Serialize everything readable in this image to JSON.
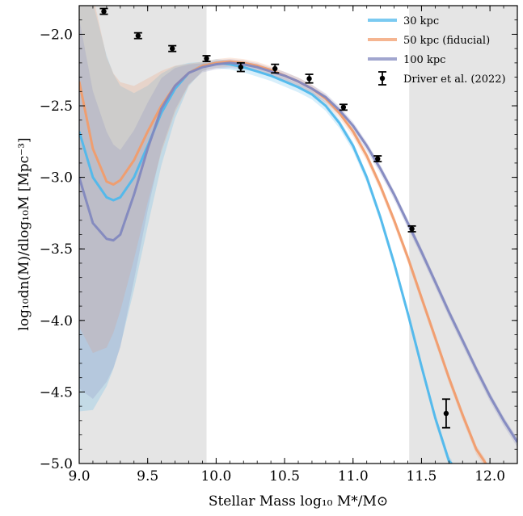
{
  "chart_data": {
    "type": "line",
    "xlabel": "Stellar Mass log₁₀ M*/M⊙",
    "ylabel": "log₁₀dn(M)/dlog₁₀M  [Mpc⁻³]",
    "xlim": [
      9.0,
      12.2
    ],
    "ylim": [
      -5.0,
      -1.8
    ],
    "x_ticks": [
      9.0,
      9.5,
      10.0,
      10.5,
      11.0,
      11.5,
      12.0
    ],
    "x_tick_labels": [
      "9.0",
      "9.5",
      "10.0",
      "10.5",
      "11.0",
      "11.5",
      "12.0"
    ],
    "y_ticks": [
      -5.0,
      -4.5,
      -4.0,
      -3.5,
      -3.0,
      -2.5,
      -2.0
    ],
    "y_tick_labels": [
      "−5.0",
      "−4.5",
      "−4.0",
      "−3.5",
      "−3.0",
      "−2.5",
      "−2.0"
    ],
    "grid": false,
    "legend_position": "top-right",
    "shaded_regions": [
      {
        "x_range": [
          9.0,
          9.93
        ],
        "color": "#e5e5e5"
      },
      {
        "x_range": [
          11.41,
          12.2
        ],
        "color": "#e5e5e5"
      }
    ],
    "series": [
      {
        "name": "30 kpc",
        "kind": "line",
        "color": "#4fb8ec",
        "x": [
          9.0,
          9.1,
          9.2,
          9.25,
          9.3,
          9.4,
          9.5,
          9.6,
          9.7,
          9.8,
          9.9,
          10.0,
          10.1,
          10.2,
          10.3,
          10.4,
          10.5,
          10.6,
          10.7,
          10.8,
          10.9,
          11.0,
          11.1,
          11.2,
          11.3,
          11.4,
          11.5,
          11.6,
          11.7,
          11.72
        ],
        "y": [
          -2.68,
          -3.0,
          -3.14,
          -3.16,
          -3.14,
          -3.0,
          -2.78,
          -2.55,
          -2.38,
          -2.27,
          -2.22,
          -2.2,
          -2.21,
          -2.23,
          -2.26,
          -2.29,
          -2.33,
          -2.37,
          -2.42,
          -2.5,
          -2.62,
          -2.78,
          -3.0,
          -3.28,
          -3.6,
          -3.95,
          -4.32,
          -4.68,
          -4.98,
          -5.0
        ],
        "band": 0.03
      },
      {
        "name": "50 kpc (fiducial)",
        "kind": "line",
        "color": "#f19c6c",
        "x": [
          9.0,
          9.1,
          9.2,
          9.25,
          9.3,
          9.4,
          9.5,
          9.6,
          9.7,
          9.8,
          9.9,
          10.0,
          10.1,
          10.2,
          10.3,
          10.4,
          10.5,
          10.6,
          10.7,
          10.8,
          10.9,
          11.0,
          11.1,
          11.2,
          11.3,
          11.4,
          11.5,
          11.6,
          11.7,
          11.8,
          11.9,
          11.97
        ],
        "y": [
          -2.33,
          -2.8,
          -3.03,
          -3.05,
          -3.02,
          -2.88,
          -2.68,
          -2.5,
          -2.36,
          -2.27,
          -2.22,
          -2.2,
          -2.19,
          -2.2,
          -2.22,
          -2.25,
          -2.29,
          -2.33,
          -2.38,
          -2.45,
          -2.55,
          -2.68,
          -2.85,
          -3.06,
          -3.3,
          -3.56,
          -3.84,
          -4.12,
          -4.4,
          -4.66,
          -4.9,
          -5.0
        ],
        "band": 0.03
      },
      {
        "name": "100 kpc",
        "kind": "line",
        "color": "#8288bf",
        "x": [
          9.0,
          9.1,
          9.2,
          9.25,
          9.3,
          9.4,
          9.5,
          9.6,
          9.7,
          9.8,
          9.9,
          10.0,
          10.1,
          10.2,
          10.3,
          10.4,
          10.5,
          10.6,
          10.7,
          10.8,
          10.9,
          11.0,
          11.1,
          11.2,
          11.3,
          11.4,
          11.5,
          11.6,
          11.7,
          11.8,
          11.9,
          12.0,
          12.1,
          12.2
        ],
        "y": [
          -3.0,
          -3.32,
          -3.43,
          -3.44,
          -3.4,
          -3.12,
          -2.8,
          -2.52,
          -2.36,
          -2.27,
          -2.23,
          -2.21,
          -2.2,
          -2.21,
          -2.23,
          -2.26,
          -2.29,
          -2.33,
          -2.38,
          -2.44,
          -2.53,
          -2.64,
          -2.78,
          -2.94,
          -3.12,
          -3.32,
          -3.52,
          -3.73,
          -3.94,
          -4.14,
          -4.34,
          -4.53,
          -4.7,
          -4.85
        ],
        "band": 0.03
      },
      {
        "name": "Driver et al. (2022)",
        "kind": "errorbar",
        "color": "#000000",
        "x": [
          9.18,
          9.43,
          9.68,
          9.93,
          10.18,
          10.43,
          10.68,
          10.93,
          11.18,
          11.43,
          11.68
        ],
        "y": [
          -1.84,
          -2.01,
          -2.1,
          -2.17,
          -2.23,
          -2.24,
          -2.31,
          -2.51,
          -2.87,
          -3.36,
          -4.65
        ],
        "yerr": [
          0.02,
          0.02,
          0.02,
          0.02,
          0.03,
          0.03,
          0.03,
          0.02,
          0.02,
          0.02,
          0.1
        ]
      }
    ]
  }
}
